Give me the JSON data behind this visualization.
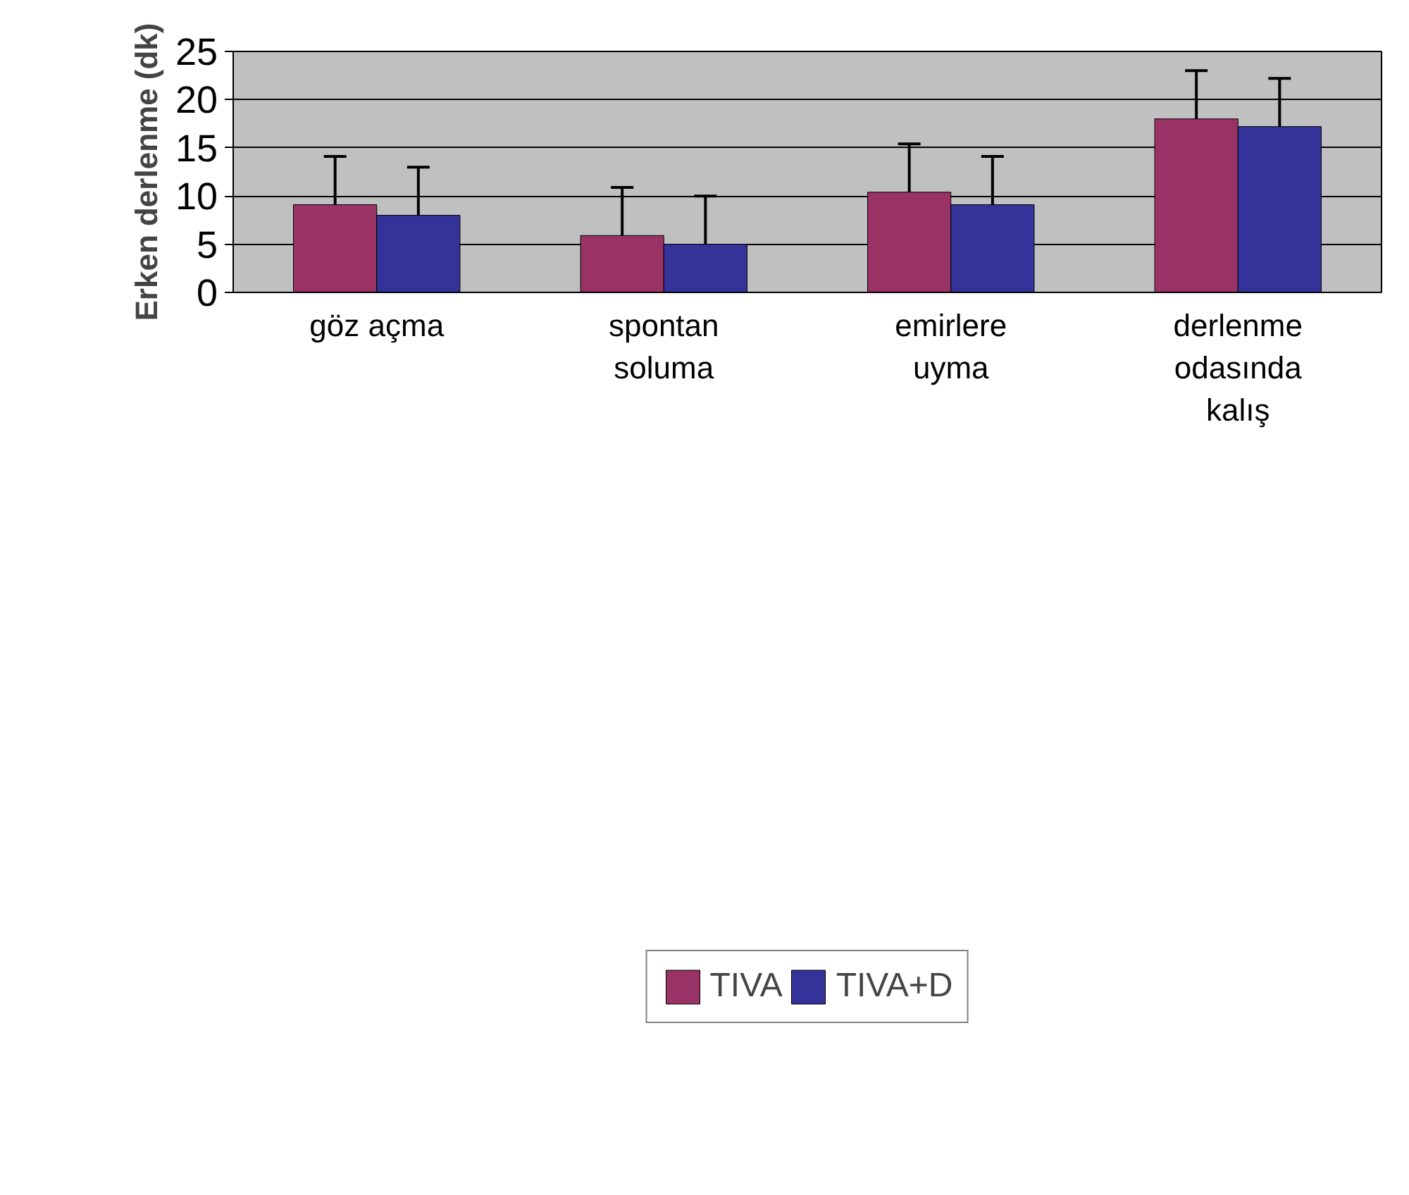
{
  "chart_data": {
    "type": "bar",
    "ylabel": "Erken derlenme (dk)",
    "categories": [
      "göz açma",
      "spontan\nsoluma",
      "emirlere\nuyma",
      "derlenme\nodasında\nkalış"
    ],
    "series": [
      {
        "name": "TIVA",
        "color": "#993366",
        "values": [
          9.1,
          5.9,
          10.4,
          18.0
        ],
        "errors": [
          [
            9.1,
            14.1
          ],
          [
            5.9,
            10.9
          ],
          [
            10.4,
            15.4
          ],
          [
            18.0,
            23.0
          ]
        ]
      },
      {
        "name": "TIVA+D",
        "color": "#333399",
        "values": [
          8.0,
          5.0,
          9.1,
          17.2
        ],
        "errors": [
          [
            8.0,
            13.0
          ],
          [
            5.0,
            10.0
          ],
          [
            9.1,
            14.1
          ],
          [
            17.2,
            22.2
          ]
        ]
      }
    ],
    "ylim": [
      0,
      25
    ],
    "yticks": [
      0,
      5,
      10,
      15,
      20,
      25
    ],
    "grid": "y",
    "legend": "bottom"
  }
}
